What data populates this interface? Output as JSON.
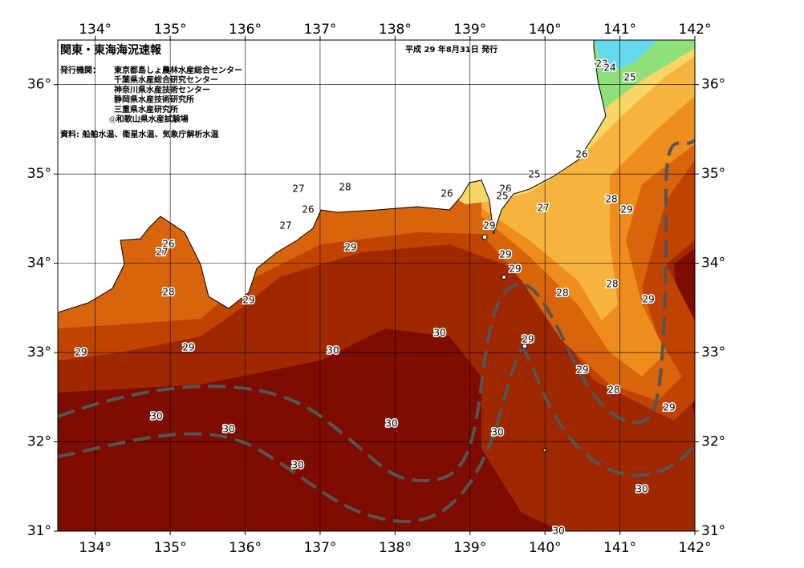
{
  "map": {
    "title": "関東・東海海況速報",
    "date": "平成 29 年8月31日 発行",
    "issuer_label": "発行機関：",
    "issuers": [
      "東京都島しょ農林水産総合センター",
      "千葉県水産総合研究センター",
      "神奈川県水産技術センター",
      "静岡県水産技術研究所",
      "三重県水産研究所",
      "◎和歌山県水産試験場"
    ],
    "source": "資料: 船舶水温、衛星水温、気象庁解析水温",
    "lon_range": [
      133.5,
      142
    ],
    "lat_range": [
      31,
      36.5
    ],
    "lon_ticks": [
      {
        "value": 134,
        "label": "134°"
      },
      {
        "value": 135,
        "label": "135°"
      },
      {
        "value": 136,
        "label": "136°"
      },
      {
        "value": 137,
        "label": "137°"
      },
      {
        "value": 138,
        "label": "138°"
      },
      {
        "value": 139,
        "label": "139°"
      },
      {
        "value": 140,
        "label": "140°"
      },
      {
        "value": 141,
        "label": "141°"
      },
      {
        "value": 142,
        "label": "142°"
      }
    ],
    "lat_ticks": [
      {
        "value": 31,
        "label": "31°"
      },
      {
        "value": 32,
        "label": "32°"
      },
      {
        "value": 33,
        "label": "33°"
      },
      {
        "value": 34,
        "label": "34°"
      },
      {
        "value": 35,
        "label": "35°"
      },
      {
        "value": 36,
        "label": "36°"
      }
    ],
    "contour_labels": [
      23,
      24,
      25,
      26,
      25,
      26,
      25,
      26,
      27,
      28,
      29,
      28,
      27,
      26,
      27,
      26,
      27,
      29,
      29,
      29,
      29,
      28,
      28,
      29,
      28,
      29,
      29,
      29,
      30,
      30,
      29,
      29,
      28,
      29,
      30,
      30,
      30,
      30,
      30,
      30,
      30
    ]
  }
}
